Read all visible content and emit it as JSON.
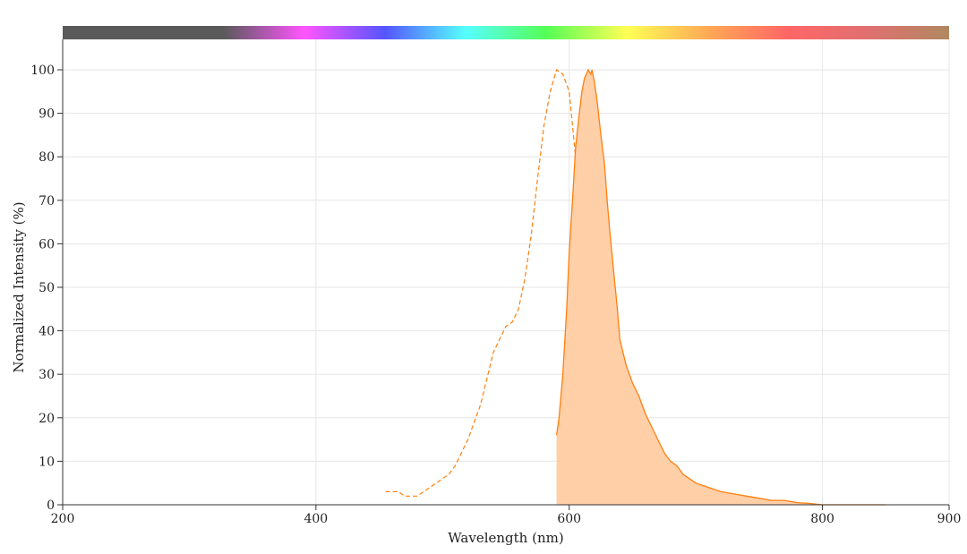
{
  "chart_data": {
    "type": "area",
    "xlabel": "Wavelength (nm)",
    "ylabel": "Normalized Intensity (%)",
    "xlim": [
      200,
      900
    ],
    "ylim": [
      0,
      100
    ],
    "x_ticks": [
      200,
      400,
      600,
      800,
      900
    ],
    "y_ticks": [
      0,
      10,
      20,
      30,
      40,
      50,
      60,
      70,
      80,
      90,
      100
    ],
    "grid": true,
    "spectrum_bar": true,
    "spectrum_colors": [
      "#5a5a5a",
      "#5a5a5a",
      "#5a5a5a",
      "#ff55ff",
      "#5555ff",
      "#55ffff",
      "#55ff55",
      "#ffff55",
      "#ffaa55",
      "#ff6666",
      "#e07070",
      "#b08860"
    ],
    "colors": {
      "line": "#ff7f0e",
      "fill": "#ffcfa8",
      "grid": "#e6e6e6",
      "axis": "#333333"
    },
    "series": [
      {
        "style": "dashed",
        "x": [
          455,
          465,
          470,
          475,
          480,
          485,
          490,
          495,
          500,
          505,
          510,
          515,
          520,
          525,
          530,
          535,
          540,
          545,
          550,
          555,
          560,
          565,
          570,
          575,
          580,
          585,
          590,
          595,
          600,
          605,
          610,
          615,
          620,
          625,
          630,
          635,
          640
        ],
        "y": [
          3,
          3,
          2,
          2,
          2,
          3,
          4,
          5,
          6,
          7,
          9,
          12,
          15,
          19,
          23,
          29,
          35,
          38,
          41,
          42,
          45,
          52,
          62,
          75,
          87,
          95,
          100,
          99,
          95,
          80,
          57,
          35,
          20,
          10,
          5,
          3,
          0
        ]
      },
      {
        "style": "solid-filled",
        "x": [
          590,
          592,
          595,
          598,
          600,
          603,
          605,
          608,
          610,
          612,
          615,
          617,
          618,
          620,
          622,
          625,
          628,
          630,
          632,
          635,
          638,
          640,
          645,
          650,
          655,
          660,
          665,
          670,
          675,
          680,
          685,
          690,
          695,
          700,
          710,
          720,
          730,
          740,
          750,
          760,
          770,
          780,
          790,
          800,
          810,
          820,
          850
        ],
        "y": [
          16,
          20,
          30,
          45,
          58,
          72,
          82,
          90,
          95,
          98,
          100,
          99,
          100,
          97,
          93,
          85,
          78,
          70,
          63,
          54,
          45,
          38,
          32,
          28,
          25,
          21,
          18,
          15,
          12,
          10,
          9,
          7,
          6,
          5,
          4,
          3,
          2.5,
          2,
          1.5,
          1,
          1,
          0.5,
          0.3,
          0,
          0,
          0,
          0
        ]
      }
    ]
  }
}
